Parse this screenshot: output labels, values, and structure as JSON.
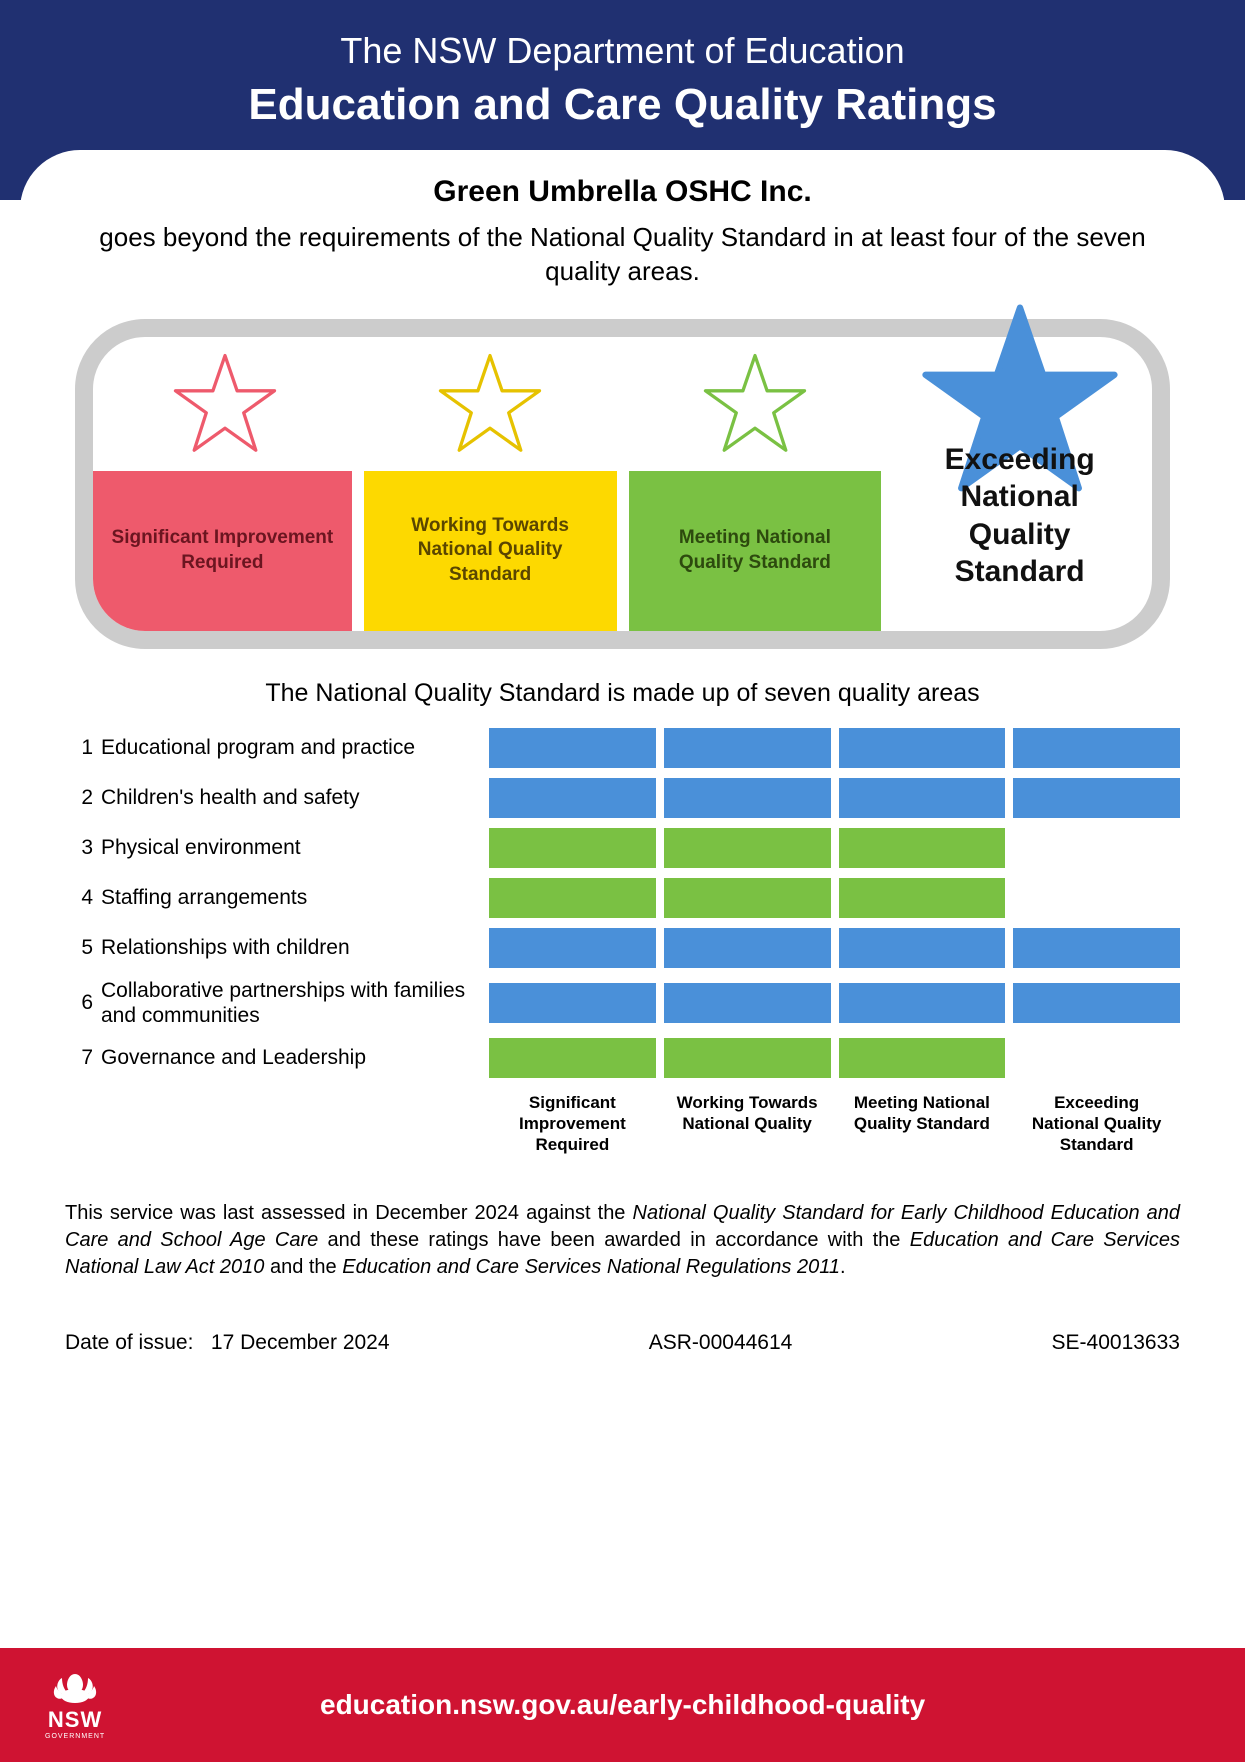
{
  "colors": {
    "header_bg": "#203071",
    "footer_bg": "#cf1332",
    "pill_border": "#cccccc",
    "red": "#ee5a6c",
    "yellow": "#fdd900",
    "green": "#7ac143",
    "blue": "#4a90d9",
    "star_red": "#ee5a6c",
    "star_yellow": "#e6c200",
    "star_green": "#7ac143",
    "star_blue": "#4a90d9"
  },
  "header": {
    "line1": "The NSW Department of Education",
    "line2": "Education and Care Quality Ratings"
  },
  "service": {
    "name": "Green Umbrella OSHC Inc.",
    "tagline": "goes beyond the requirements of the National Quality Standard in at least four of the seven quality areas."
  },
  "rating_levels": [
    {
      "key": "sir",
      "label": "Significant Improvement Required",
      "color": "red",
      "achieved": false
    },
    {
      "key": "wt",
      "label": "Working Towards National Quality Standard",
      "color": "yellow",
      "achieved": false
    },
    {
      "key": "m",
      "label": "Meeting National Quality Standard",
      "color": "green",
      "achieved": false
    },
    {
      "key": "ex",
      "label": "Exceeding National Quality Standard",
      "color": "blue",
      "achieved": true
    }
  ],
  "section_title": "The National Quality Standard is made up of seven quality areas",
  "quality_areas": {
    "column_headers": [
      "Significant Improvement Required",
      "Working Towards National Quality",
      "Meeting National Quality Standard",
      "Exceeding National Quality Standard"
    ],
    "rows": [
      {
        "num": "1",
        "label": "Educational program and practice",
        "level": 4
      },
      {
        "num": "2",
        "label": "Children's health and safety",
        "level": 4
      },
      {
        "num": "3",
        "label": "Physical environment",
        "level": 3
      },
      {
        "num": "4",
        "label": "Staffing arrangements",
        "level": 3
      },
      {
        "num": "5",
        "label": "Relationships with children",
        "level": 4
      },
      {
        "num": "6",
        "label": "Collaborative partnerships with families and communities",
        "level": 4
      },
      {
        "num": "7",
        "label": "Governance and Leadership",
        "level": 3
      }
    ],
    "level_color_map": {
      "3": "green",
      "4": "blue"
    }
  },
  "disclaimer": {
    "prefix": "This service was last assessed in December 2024 against the ",
    "ital1": "National Quality Standard for Early Childhood Education and Care and School Age Care",
    "mid1": " and these ratings have been awarded in accordance with the ",
    "ital2": "Education and Care Services National Law Act 2010",
    "mid2": " and the ",
    "ital3": "Education and Care Services National Regulations 2011",
    "suffix": "."
  },
  "meta": {
    "date_label": "Date of issue:",
    "date_value": "17 December 2024",
    "ref1": "ASR-00044614",
    "ref2": "SE-40013633"
  },
  "footer": {
    "logo_text": "NSW",
    "logo_sub": "GOVERNMENT",
    "url": "education.nsw.gov.au/early-childhood-quality"
  }
}
